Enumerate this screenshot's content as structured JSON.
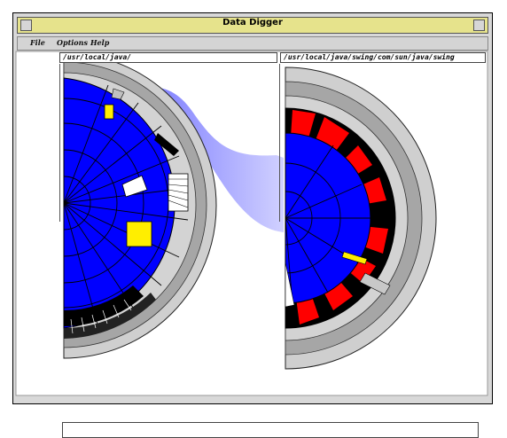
{
  "window": {
    "title": "Data Digger"
  },
  "menu": {
    "items": [
      "File",
      "Options",
      "Help"
    ]
  },
  "paths": {
    "left": "/usr/local/java/",
    "right": "/usr/local/java/swing/com/sun/java/swing"
  },
  "status": {
    "value": ""
  },
  "colors": {
    "directory": "#0000ff",
    "selected": "#ffee00",
    "file_black": "#000000",
    "file_white": "#ffffff",
    "file_red": "#ff0000",
    "level_light": "#d0d0d0",
    "level_mid": "#a8a8a8",
    "link_band": "#6f6fff",
    "titlebar": "#e6e38c"
  },
  "icons": [
    "window-close-icon",
    "window-minimize-icon"
  ]
}
